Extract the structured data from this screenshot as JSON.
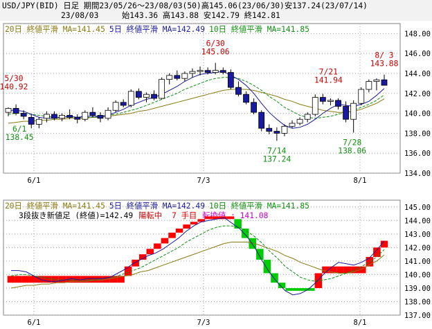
{
  "header": {
    "line1": "USD/JPY(BID) 日足 期間23/05/26～23/08/03(50)高145.06(23/06/30)安137.24(23/07/14)",
    "date": "23/08/03",
    "ohlc": "始143.36 高143.88 安142.79 終142.81"
  },
  "colors": {
    "up_candle": "#ffffff",
    "down_candle": "#1a1aa0",
    "ma20": "#8a7a10",
    "ma5": "#1a1aa0",
    "ma10": "#109010",
    "red_brick": "#ff0000",
    "green_brick": "#00cc00",
    "annotation_high": "#cc0000",
    "annotation_low": "#109010"
  },
  "chart_data": [
    {
      "type": "candlestick",
      "legend": [
        {
          "label": "20日 終値平滑 MA=141.45",
          "color": "#8a7a10"
        },
        {
          "label": "5日 終値平滑 MA=142.49",
          "color": "#1a1aa0"
        },
        {
          "label": "10日 終値平滑 MA=141.85",
          "color": "#109010"
        }
      ],
      "y_ticks": [
        "148.00",
        "146.00",
        "144.00",
        "142.00",
        "140.00",
        "138.00",
        "136.00",
        "134.00"
      ],
      "ylim": [
        134,
        149
      ],
      "x_ticks": [
        "6/1",
        "7/3",
        "8/1"
      ],
      "annotations": [
        {
          "date": "5/30",
          "value": "140.92",
          "kind": "high"
        },
        {
          "date": "6/1",
          "value": "138.45",
          "kind": "low"
        },
        {
          "date": "6/30",
          "value": "145.06",
          "kind": "high"
        },
        {
          "date": "7/14",
          "value": "137.24",
          "kind": "low"
        },
        {
          "date": "7/21",
          "value": "141.94",
          "kind": "high"
        },
        {
          "date": "7/28",
          "value": "138.06",
          "kind": "low"
        },
        {
          "date": "8/ 3",
          "value": "143.88",
          "kind": "high"
        }
      ],
      "candles": [
        {
          "o": 140.1,
          "h": 140.6,
          "l": 139.7,
          "c": 140.5
        },
        {
          "o": 140.5,
          "h": 140.9,
          "l": 139.8,
          "c": 140.0
        },
        {
          "o": 140.0,
          "h": 140.3,
          "l": 139.4,
          "c": 139.7
        },
        {
          "o": 139.6,
          "h": 139.9,
          "l": 138.5,
          "c": 138.9
        },
        {
          "o": 138.9,
          "h": 139.6,
          "l": 138.5,
          "c": 139.4
        },
        {
          "o": 139.5,
          "h": 140.2,
          "l": 139.1,
          "c": 139.9
        },
        {
          "o": 139.9,
          "h": 140.2,
          "l": 139.3,
          "c": 139.5
        },
        {
          "o": 139.5,
          "h": 140.0,
          "l": 139.2,
          "c": 139.8
        },
        {
          "o": 139.8,
          "h": 140.4,
          "l": 139.4,
          "c": 139.6
        },
        {
          "o": 139.6,
          "h": 139.9,
          "l": 139.0,
          "c": 139.4
        },
        {
          "o": 139.4,
          "h": 140.3,
          "l": 139.2,
          "c": 140.1
        },
        {
          "o": 140.1,
          "h": 140.6,
          "l": 139.6,
          "c": 139.8
        },
        {
          "o": 139.8,
          "h": 140.1,
          "l": 139.1,
          "c": 139.5
        },
        {
          "o": 139.5,
          "h": 140.6,
          "l": 139.3,
          "c": 140.3
        },
        {
          "o": 140.3,
          "h": 141.3,
          "l": 140.1,
          "c": 141.1
        },
        {
          "o": 141.1,
          "h": 141.4,
          "l": 140.6,
          "c": 140.8
        },
        {
          "o": 140.8,
          "h": 142.4,
          "l": 140.6,
          "c": 142.2
        },
        {
          "o": 142.2,
          "h": 142.5,
          "l": 141.4,
          "c": 141.6
        },
        {
          "o": 141.6,
          "h": 142.1,
          "l": 141.1,
          "c": 141.9
        },
        {
          "o": 141.9,
          "h": 142.3,
          "l": 141.3,
          "c": 141.5
        },
        {
          "o": 141.5,
          "h": 143.6,
          "l": 141.4,
          "c": 143.4
        },
        {
          "o": 143.4,
          "h": 144.0,
          "l": 142.9,
          "c": 143.8
        },
        {
          "o": 143.8,
          "h": 144.3,
          "l": 143.3,
          "c": 143.5
        },
        {
          "o": 143.5,
          "h": 144.2,
          "l": 143.2,
          "c": 144.0
        },
        {
          "o": 144.0,
          "h": 144.5,
          "l": 143.6,
          "c": 144.2
        },
        {
          "o": 144.2,
          "h": 144.7,
          "l": 143.8,
          "c": 144.3
        },
        {
          "o": 144.3,
          "h": 144.6,
          "l": 143.9,
          "c": 144.1
        },
        {
          "o": 144.1,
          "h": 145.06,
          "l": 143.9,
          "c": 144.3
        },
        {
          "o": 144.3,
          "h": 144.6,
          "l": 143.9,
          "c": 144.1
        },
        {
          "o": 144.1,
          "h": 144.4,
          "l": 142.4,
          "c": 142.6
        },
        {
          "o": 142.6,
          "h": 143.2,
          "l": 141.7,
          "c": 141.9
        },
        {
          "o": 141.9,
          "h": 142.2,
          "l": 140.9,
          "c": 141.1
        },
        {
          "o": 141.1,
          "h": 141.5,
          "l": 139.9,
          "c": 140.1
        },
        {
          "o": 140.1,
          "h": 140.3,
          "l": 138.2,
          "c": 138.5
        },
        {
          "o": 138.5,
          "h": 138.9,
          "l": 137.9,
          "c": 138.2
        },
        {
          "o": 138.2,
          "h": 138.6,
          "l": 137.24,
          "c": 138.0
        },
        {
          "o": 138.0,
          "h": 138.9,
          "l": 137.7,
          "c": 138.7
        },
        {
          "o": 138.7,
          "h": 139.3,
          "l": 138.5,
          "c": 139.0
        },
        {
          "o": 139.0,
          "h": 139.6,
          "l": 138.8,
          "c": 139.4
        },
        {
          "o": 139.4,
          "h": 140.1,
          "l": 139.1,
          "c": 139.9
        },
        {
          "o": 139.9,
          "h": 141.9,
          "l": 139.7,
          "c": 141.6
        },
        {
          "o": 141.6,
          "h": 141.94,
          "l": 140.9,
          "c": 141.2
        },
        {
          "o": 141.2,
          "h": 141.5,
          "l": 140.8,
          "c": 141.3
        },
        {
          "o": 141.3,
          "h": 141.5,
          "l": 140.4,
          "c": 140.7
        },
        {
          "o": 140.7,
          "h": 141.2,
          "l": 139.1,
          "c": 139.4
        },
        {
          "o": 139.4,
          "h": 141.3,
          "l": 138.06,
          "c": 141.0
        },
        {
          "o": 141.0,
          "h": 142.6,
          "l": 140.8,
          "c": 142.4
        },
        {
          "o": 142.4,
          "h": 143.4,
          "l": 142.1,
          "c": 143.2
        },
        {
          "o": 143.2,
          "h": 143.5,
          "l": 142.3,
          "c": 143.36
        },
        {
          "o": 143.36,
          "h": 143.88,
          "l": 142.79,
          "c": 142.81
        }
      ],
      "ma20": [
        139.0,
        139.1,
        139.2,
        139.2,
        139.3,
        139.3,
        139.4,
        139.4,
        139.5,
        139.5,
        139.5,
        139.6,
        139.6,
        139.7,
        139.8,
        139.9,
        140.0,
        140.2,
        140.3,
        140.5,
        140.7,
        140.9,
        141.1,
        141.3,
        141.5,
        141.7,
        141.9,
        142.1,
        142.3,
        142.4,
        142.4,
        142.4,
        142.3,
        142.1,
        141.9,
        141.7,
        141.4,
        141.2,
        140.9,
        140.7,
        140.5,
        140.3,
        140.2,
        140.1,
        140.1,
        140.2,
        140.4,
        140.7,
        141.0,
        141.45
      ],
      "ma5": [
        140.3,
        140.3,
        140.2,
        139.9,
        139.6,
        139.5,
        139.5,
        139.6,
        139.7,
        139.6,
        139.7,
        139.7,
        139.7,
        139.8,
        140.1,
        140.4,
        140.8,
        141.1,
        141.4,
        141.6,
        141.9,
        142.3,
        142.7,
        143.2,
        143.6,
        143.9,
        144.0,
        144.1,
        144.2,
        143.8,
        143.4,
        142.8,
        142.0,
        141.0,
        140.1,
        139.4,
        138.8,
        138.5,
        138.6,
        138.9,
        139.4,
        140.0,
        140.5,
        140.9,
        140.8,
        140.7,
        140.9,
        141.2,
        141.8,
        142.49
      ],
      "ma10": [
        139.9,
        140.0,
        140.0,
        139.9,
        139.8,
        139.7,
        139.6,
        139.6,
        139.6,
        139.6,
        139.6,
        139.6,
        139.7,
        139.8,
        139.9,
        140.1,
        140.3,
        140.5,
        140.8,
        141.1,
        141.4,
        141.7,
        142.0,
        142.4,
        142.7,
        143.0,
        143.3,
        143.5,
        143.6,
        143.6,
        143.5,
        143.2,
        142.8,
        142.3,
        141.7,
        141.2,
        140.6,
        140.2,
        139.8,
        139.6,
        139.5,
        139.6,
        139.7,
        139.9,
        140.1,
        140.3,
        140.6,
        140.9,
        141.3,
        141.85
      ]
    },
    {
      "type": "three-line-break",
      "legend": [
        {
          "label": "20日 終値平滑 MA=141.45",
          "color": "#8a7a10"
        },
        {
          "label": "5日 終値平滑 MA=142.49",
          "color": "#1a1aa0"
        },
        {
          "label": "10日 終値平滑 MA=141.85",
          "color": "#109010"
        }
      ],
      "subtitle": {
        "part1": "3段抜き新値足 (終値)=142.49",
        "part2": "陽転中",
        "part3": "7 手目",
        "part4": "転換値 : 141.08"
      },
      "y_ticks": [
        "145.00",
        "144.00",
        "143.00",
        "142.00",
        "141.00",
        "140.00",
        "139.00",
        "138.00",
        "137.00"
      ],
      "ylim": [
        137,
        145.5
      ],
      "x_ticks": [
        "6/1",
        "7/3",
        "8/1"
      ],
      "bricks": [
        {
          "i": 0,
          "lo": 139.4,
          "hi": 139.9,
          "up": true
        },
        {
          "i": 1,
          "lo": 139.4,
          "hi": 139.9,
          "up": true
        },
        {
          "i": 2,
          "lo": 139.4,
          "hi": 139.9,
          "up": true
        },
        {
          "i": 3,
          "lo": 139.4,
          "hi": 139.9,
          "up": true
        },
        {
          "i": 4,
          "lo": 139.4,
          "hi": 139.9,
          "up": true
        },
        {
          "i": 5,
          "lo": 139.4,
          "hi": 139.9,
          "up": true
        },
        {
          "i": 6,
          "lo": 139.4,
          "hi": 139.9,
          "up": true
        },
        {
          "i": 7,
          "lo": 139.4,
          "hi": 139.9,
          "up": true
        },
        {
          "i": 8,
          "lo": 139.4,
          "hi": 139.9,
          "up": true
        },
        {
          "i": 9,
          "lo": 139.4,
          "hi": 139.9,
          "up": true
        },
        {
          "i": 10,
          "lo": 139.4,
          "hi": 139.9,
          "up": true
        },
        {
          "i": 11,
          "lo": 139.4,
          "hi": 139.9,
          "up": true
        },
        {
          "i": 12,
          "lo": 139.4,
          "hi": 139.9,
          "up": true
        },
        {
          "i": 13,
          "lo": 139.4,
          "hi": 139.9,
          "up": true
        },
        {
          "i": 14,
          "lo": 139.4,
          "hi": 139.9,
          "up": true
        },
        {
          "i": 15,
          "lo": 139.4,
          "hi": 139.9,
          "up": true
        },
        {
          "i": 16,
          "lo": 139.9,
          "hi": 140.6,
          "up": true
        },
        {
          "i": 17,
          "lo": 140.6,
          "hi": 141.1,
          "up": true
        },
        {
          "i": 18,
          "lo": 141.1,
          "hi": 141.5,
          "up": true
        },
        {
          "i": 19,
          "lo": 141.5,
          "hi": 141.9,
          "up": true
        },
        {
          "i": 20,
          "lo": 141.9,
          "hi": 142.3,
          "up": true
        },
        {
          "i": 21,
          "lo": 142.3,
          "hi": 142.7,
          "up": true
        },
        {
          "i": 22,
          "lo": 142.7,
          "hi": 143.1,
          "up": true
        },
        {
          "i": 23,
          "lo": 143.1,
          "hi": 143.4,
          "up": true
        },
        {
          "i": 24,
          "lo": 143.4,
          "hi": 143.7,
          "up": true
        },
        {
          "i": 25,
          "lo": 143.7,
          "hi": 143.9,
          "up": true
        },
        {
          "i": 26,
          "lo": 143.9,
          "hi": 144.1,
          "up": true
        },
        {
          "i": 27,
          "lo": 144.1,
          "hi": 144.3,
          "up": true
        },
        {
          "i": 28,
          "lo": 144.1,
          "hi": 144.3,
          "up": true
        },
        {
          "i": 29,
          "lo": 144.1,
          "hi": 144.3,
          "up": true
        },
        {
          "i": 30,
          "lo": 144.1,
          "hi": 144.3,
          "up": true
        },
        {
          "i": 31,
          "lo": 143.4,
          "hi": 144.1,
          "up": false
        },
        {
          "i": 32,
          "lo": 142.7,
          "hi": 143.4,
          "up": false
        },
        {
          "i": 33,
          "lo": 141.9,
          "hi": 142.7,
          "up": false
        },
        {
          "i": 34,
          "lo": 141.1,
          "hi": 141.9,
          "up": false
        },
        {
          "i": 35,
          "lo": 140.1,
          "hi": 141.1,
          "up": false
        },
        {
          "i": 36,
          "lo": 139.4,
          "hi": 140.1,
          "up": false
        },
        {
          "i": 37,
          "lo": 139.0,
          "hi": 139.4,
          "up": false
        },
        {
          "i": 38,
          "lo": 138.8,
          "hi": 139.0,
          "up": false
        },
        {
          "i": 39,
          "lo": 138.8,
          "hi": 139.0,
          "up": false
        },
        {
          "i": 40,
          "lo": 138.8,
          "hi": 139.0,
          "up": false
        },
        {
          "i": 41,
          "lo": 138.8,
          "hi": 139.0,
          "up": false
        },
        {
          "i": 42,
          "lo": 139.0,
          "hi": 140.1,
          "up": true
        },
        {
          "i": 43,
          "lo": 140.1,
          "hi": 140.6,
          "up": true
        },
        {
          "i": 44,
          "lo": 140.1,
          "hi": 140.6,
          "up": true
        },
        {
          "i": 45,
          "lo": 140.1,
          "hi": 140.6,
          "up": true
        },
        {
          "i": 46,
          "lo": 140.1,
          "hi": 140.6,
          "up": true
        },
        {
          "i": 47,
          "lo": 140.1,
          "hi": 140.6,
          "up": true
        },
        {
          "i": 48,
          "lo": 140.1,
          "hi": 140.6,
          "up": true
        },
        {
          "i": 49,
          "lo": 140.6,
          "hi": 141.3,
          "up": true
        },
        {
          "i": 50,
          "lo": 141.3,
          "hi": 142.0,
          "up": true
        },
        {
          "i": 51,
          "lo": 142.0,
          "hi": 142.5,
          "up": true
        }
      ],
      "ma20": [
        139.0,
        139.1,
        139.2,
        139.2,
        139.3,
        139.3,
        139.4,
        139.4,
        139.5,
        139.5,
        139.5,
        139.6,
        139.6,
        139.7,
        139.8,
        139.9,
        140.0,
        140.2,
        140.3,
        140.5,
        140.7,
        140.9,
        141.1,
        141.3,
        141.5,
        141.7,
        141.9,
        142.1,
        142.3,
        142.4,
        142.4,
        142.4,
        142.3,
        142.1,
        141.9,
        141.7,
        141.4,
        141.2,
        140.9,
        140.7,
        140.5,
        140.3,
        140.2,
        140.1,
        140.1,
        140.2,
        140.4,
        140.7,
        141.0,
        141.45
      ],
      "ma5": [
        140.3,
        140.3,
        140.2,
        139.9,
        139.6,
        139.5,
        139.5,
        139.6,
        139.7,
        139.6,
        139.7,
        139.7,
        139.7,
        139.8,
        140.1,
        140.4,
        140.8,
        141.1,
        141.4,
        141.6,
        141.9,
        142.3,
        142.7,
        143.2,
        143.6,
        143.9,
        144.0,
        144.1,
        144.2,
        143.8,
        143.4,
        142.8,
        142.0,
        141.0,
        140.1,
        139.4,
        138.8,
        138.5,
        138.6,
        138.9,
        139.4,
        140.0,
        140.5,
        140.9,
        140.8,
        140.7,
        140.9,
        141.2,
        141.8,
        142.49
      ],
      "ma10": [
        139.9,
        140.0,
        140.0,
        139.9,
        139.8,
        139.7,
        139.6,
        139.6,
        139.6,
        139.6,
        139.6,
        139.6,
        139.7,
        139.8,
        139.9,
        140.1,
        140.3,
        140.5,
        140.8,
        141.1,
        141.4,
        141.7,
        142.0,
        142.4,
        142.7,
        143.0,
        143.3,
        143.5,
        143.6,
        143.6,
        143.5,
        143.2,
        142.8,
        142.3,
        141.7,
        141.2,
        140.6,
        140.2,
        139.8,
        139.6,
        139.5,
        139.6,
        139.7,
        139.9,
        140.1,
        140.3,
        140.6,
        140.9,
        141.3,
        141.85
      ]
    }
  ]
}
